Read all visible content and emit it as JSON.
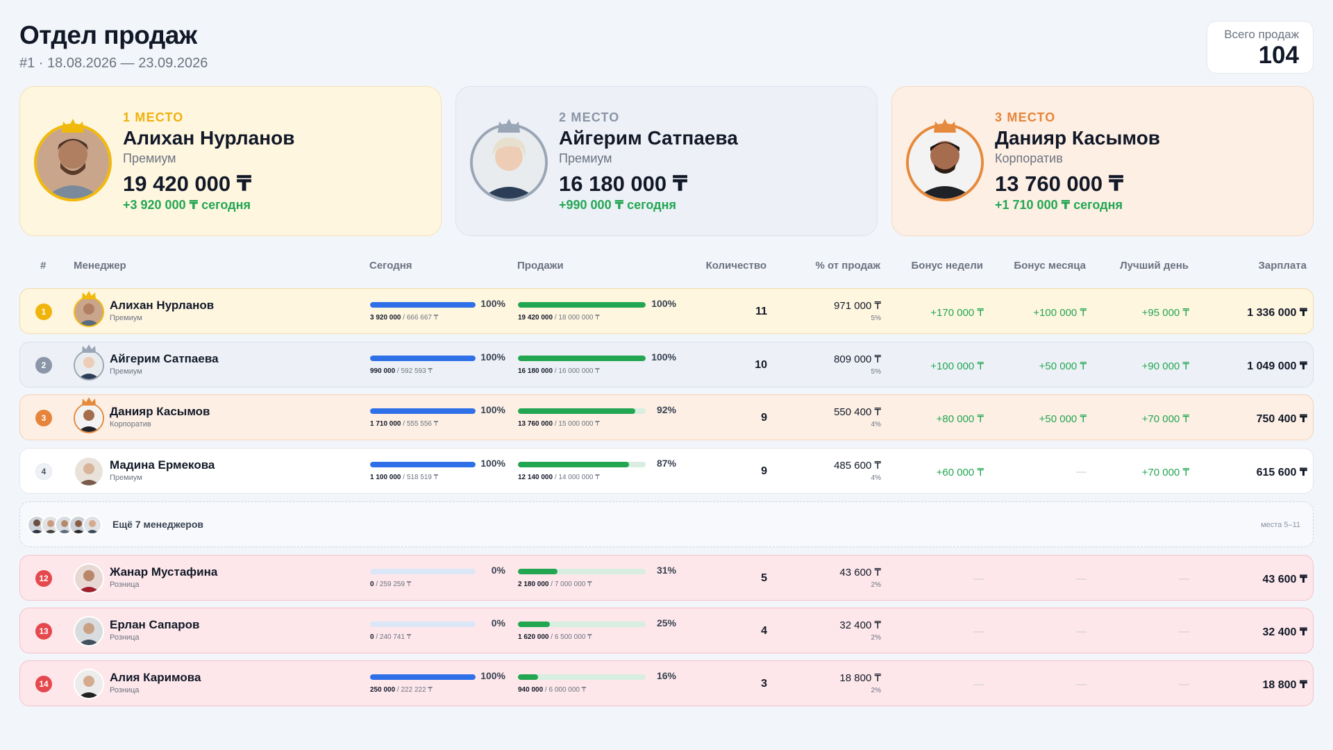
{
  "header": {
    "title": "Отдел продаж",
    "subtitle": "#1 · 18.08.2026 — 23.09.2026",
    "total_label": "Всего продаж",
    "total_value": "104"
  },
  "colors": {
    "gold": "#f0b90b",
    "silver": "#9aa5b5",
    "bronze": "#e58a3c",
    "green": "#22a652",
    "blue": "#2f6fe8",
    "red": "#e5484d"
  },
  "podium": [
    {
      "place": "1 МЕСТО",
      "name": "Алихан Нурланов",
      "tier": "Премиум",
      "amount": "19 420 000 ₸",
      "today": "+3 920 000 ₸ сегодня"
    },
    {
      "place": "2 МЕСТО",
      "name": "Айгерим Сатпаева",
      "tier": "Премиум",
      "amount": "16 180 000 ₸",
      "today": "+990 000 ₸ сегодня"
    },
    {
      "place": "3 МЕСТО",
      "name": "Данияр Касымов",
      "tier": "Корпоратив",
      "amount": "13 760 000 ₸",
      "today": "+1 710 000 ₸ сегодня"
    }
  ],
  "table": {
    "headers": {
      "rank": "#",
      "manager": "Менеджер",
      "today": "Сегодня",
      "sales": "Продажи",
      "qty": "Количество",
      "share": "% от продаж",
      "bonus_week": "Бонус недели",
      "bonus_month": "Бонус месяца",
      "best_day": "Лучший день",
      "salary": "Зарплата"
    },
    "rows": [
      {
        "rank": "1",
        "name": "Алихан Нурланов",
        "tier": "Премиум",
        "today_pct": "100%",
        "today_fill": 1.0,
        "today_val": "3 920 000",
        "today_plan": " / 666 667 ₸",
        "sales_pct": "100%",
        "sales_fill": 1.0,
        "sales_val": "19 420 000",
        "sales_plan": " / 18 000 000 ₸",
        "qty": "11",
        "share": "971 000 ₸",
        "share_pct": "5%",
        "bonus_week": "+170 000 ₸",
        "bonus_month": "+100 000 ₸",
        "best_day": "+95 000 ₸",
        "salary": "1 336 000 ₸"
      },
      {
        "rank": "2",
        "name": "Айгерим Сатпаева",
        "tier": "Премиум",
        "today_pct": "100%",
        "today_fill": 1.0,
        "today_val": "990 000",
        "today_plan": " / 592 593 ₸",
        "sales_pct": "100%",
        "sales_fill": 1.0,
        "sales_val": "16 180 000",
        "sales_plan": " / 16 000 000 ₸",
        "qty": "10",
        "share": "809 000 ₸",
        "share_pct": "5%",
        "bonus_week": "+100 000 ₸",
        "bonus_month": "+50 000 ₸",
        "best_day": "+90 000 ₸",
        "salary": "1 049 000 ₸"
      },
      {
        "rank": "3",
        "name": "Данияр Касымов",
        "tier": "Корпоратив",
        "today_pct": "100%",
        "today_fill": 1.0,
        "today_val": "1 710 000",
        "today_plan": " / 555 556 ₸",
        "sales_pct": "92%",
        "sales_fill": 0.92,
        "sales_val": "13 760 000",
        "sales_plan": " / 15 000 000 ₸",
        "qty": "9",
        "share": "550 400 ₸",
        "share_pct": "4%",
        "bonus_week": "+80 000 ₸",
        "bonus_month": "+50 000 ₸",
        "best_day": "+70 000 ₸",
        "salary": "750 400 ₸"
      },
      {
        "rank": "4",
        "name": "Мадина Ермекова",
        "tier": "Премиум",
        "today_pct": "100%",
        "today_fill": 1.0,
        "today_val": "1 100 000",
        "today_plan": " / 518 519 ₸",
        "sales_pct": "87%",
        "sales_fill": 0.87,
        "sales_val": "12 140 000",
        "sales_plan": " / 14 000 000 ₸",
        "qty": "9",
        "share": "485 600 ₸",
        "share_pct": "4%",
        "bonus_week": "+60 000 ₸",
        "bonus_month": "—",
        "best_day": "+70 000 ₸",
        "salary": "615 600 ₸"
      },
      {
        "rank": "12",
        "name": "Жанар Мустафина",
        "tier": "Розница",
        "today_pct": "0%",
        "today_fill": 0.0,
        "today_val": "0",
        "today_plan": " / 259 259 ₸",
        "sales_pct": "31%",
        "sales_fill": 0.31,
        "sales_val": "2 180 000",
        "sales_plan": " / 7 000 000 ₸",
        "qty": "5",
        "share": "43 600 ₸",
        "share_pct": "2%",
        "bonus_week": "—",
        "bonus_month": "—",
        "best_day": "—",
        "salary": "43 600 ₸"
      },
      {
        "rank": "13",
        "name": "Ерлан Сапаров",
        "tier": "Розница",
        "today_pct": "0%",
        "today_fill": 0.0,
        "today_val": "0",
        "today_plan": " / 240 741 ₸",
        "sales_pct": "25%",
        "sales_fill": 0.25,
        "sales_val": "1 620 000",
        "sales_plan": " / 6 500 000 ₸",
        "qty": "4",
        "share": "32 400 ₸",
        "share_pct": "2%",
        "bonus_week": "—",
        "bonus_month": "—",
        "best_day": "—",
        "salary": "32 400 ₸"
      },
      {
        "rank": "14",
        "name": "Алия Каримова",
        "tier": "Розница",
        "today_pct": "100%",
        "today_fill": 1.0,
        "today_val": "250 000",
        "today_plan": " / 222 222 ₸",
        "sales_pct": "16%",
        "sales_fill": 0.16,
        "sales_val": "940 000",
        "sales_plan": " / 6 000 000 ₸",
        "qty": "3",
        "share": "18 800 ₸",
        "share_pct": "2%",
        "bonus_week": "—",
        "bonus_month": "—",
        "best_day": "—",
        "salary": "18 800 ₸"
      }
    ],
    "collapsed": {
      "label": "Ещё 7 менеджеров",
      "places": "места 5–11"
    }
  }
}
